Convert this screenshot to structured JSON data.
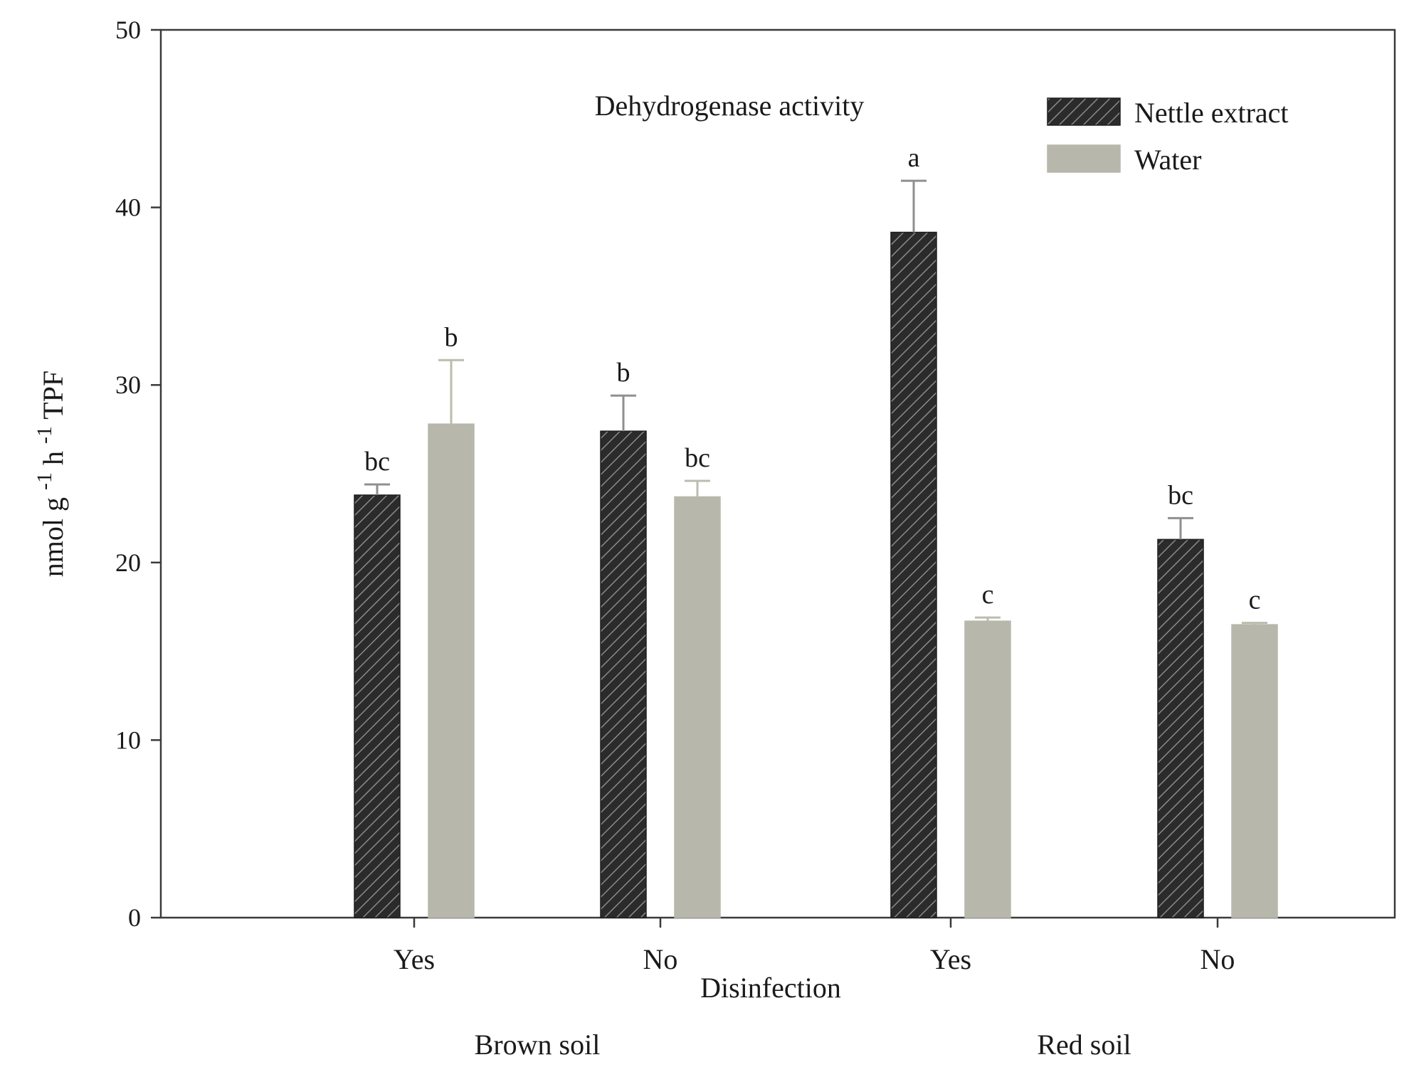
{
  "chart_data": {
    "type": "bar",
    "title": "Dehydrogenase activity",
    "ylabel": "nmol g -1 h -1 TPF",
    "ylabel_parts": [
      "nmol g ",
      "-1",
      " h ",
      "-1",
      " TPF"
    ],
    "xlabel": "Disinfection",
    "ylim": [
      0,
      50
    ],
    "yticks": [
      0,
      10,
      20,
      30,
      40,
      50
    ],
    "categories": [
      "Yes",
      "No",
      "Yes",
      "No"
    ],
    "groups": [
      {
        "label": "Brown soil",
        "categories": [
          0,
          1
        ]
      },
      {
        "label": "Red soil",
        "categories": [
          2,
          3
        ]
      }
    ],
    "series": [
      {
        "name": "Nettle extract",
        "color": "#2b2b2b",
        "pattern": "hatch",
        "values": [
          23.8,
          27.4,
          38.6,
          21.3
        ],
        "errors": [
          0.6,
          2.0,
          2.9,
          1.2
        ],
        "labels": [
          "bc",
          "b",
          "a",
          "bc"
        ]
      },
      {
        "name": "Water",
        "color": "#b7b7ab",
        "pattern": "solid",
        "values": [
          27.8,
          23.7,
          16.7,
          16.5
        ],
        "errors": [
          3.6,
          0.9,
          0.2,
          0.1
        ],
        "labels": [
          "b",
          "bc",
          "c",
          "c"
        ]
      }
    ]
  }
}
